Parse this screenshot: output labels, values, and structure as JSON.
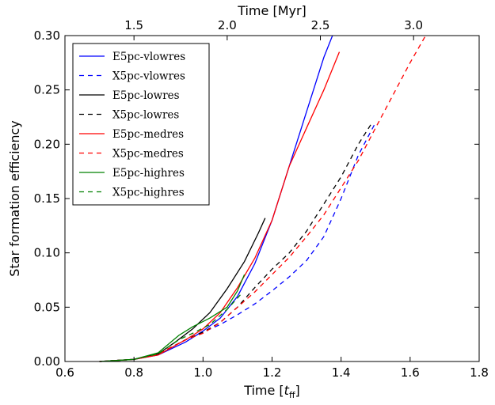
{
  "chart_data": {
    "type": "line",
    "xlabel": "Time [",
    "xlabel_sym": "t",
    "xlabel_sub": "ff",
    "xlabel_end": "]",
    "ylabel": "Star formation efficiency",
    "top_xlabel": "Time [Myr]",
    "xlim": [
      0.6,
      1.8
    ],
    "ylim": [
      0.0,
      0.3
    ],
    "xticks": [
      "0.6",
      "0.8",
      "1.0",
      "1.2",
      "1.4",
      "1.6",
      "1.8"
    ],
    "yticks": [
      "0.00",
      "0.05",
      "0.10",
      "0.15",
      "0.20",
      "0.25",
      "0.30"
    ],
    "top_xticks": [
      {
        "label": "1.5",
        "x": 0.8
      },
      {
        "label": "2.0",
        "x": 1.07
      },
      {
        "label": "2.5",
        "x": 1.34
      },
      {
        "label": "3.0",
        "x": 1.61
      }
    ],
    "grid": false,
    "legend_position": "top-left",
    "series": [
      {
        "name": "E5pc-vlowres",
        "color": "#0000ff",
        "dash": "solid",
        "x": [
          0.7,
          0.8,
          0.87,
          0.95,
          1.0,
          1.05,
          1.1,
          1.15,
          1.2,
          1.25,
          1.3,
          1.35,
          1.375
        ],
        "y": [
          0.0,
          0.002,
          0.006,
          0.018,
          0.028,
          0.04,
          0.06,
          0.09,
          0.13,
          0.18,
          0.23,
          0.28,
          0.3
        ]
      },
      {
        "name": "X5pc-vlowres",
        "color": "#0000ff",
        "dash": "dashed",
        "x": [
          0.7,
          0.8,
          0.87,
          0.95,
          1.0,
          1.05,
          1.1,
          1.15,
          1.2,
          1.25,
          1.3,
          1.35,
          1.4,
          1.45,
          1.5
        ],
        "y": [
          0.0,
          0.002,
          0.007,
          0.02,
          0.027,
          0.034,
          0.043,
          0.053,
          0.065,
          0.078,
          0.093,
          0.115,
          0.15,
          0.19,
          0.22
        ]
      },
      {
        "name": "E5pc-lowres",
        "color": "#000000",
        "dash": "solid",
        "x": [
          0.7,
          0.8,
          0.87,
          0.92,
          0.97,
          1.02,
          1.07,
          1.12,
          1.16,
          1.18
        ],
        "y": [
          0.0,
          0.002,
          0.007,
          0.018,
          0.03,
          0.045,
          0.067,
          0.092,
          0.118,
          0.132
        ]
      },
      {
        "name": "X5pc-lowres",
        "color": "#000000",
        "dash": "dashed",
        "x": [
          0.7,
          0.8,
          0.87,
          0.95,
          1.0,
          1.05,
          1.1,
          1.15,
          1.2,
          1.25,
          1.3,
          1.35,
          1.4,
          1.45,
          1.49
        ],
        "y": [
          0.0,
          0.002,
          0.007,
          0.02,
          0.027,
          0.036,
          0.05,
          0.068,
          0.085,
          0.1,
          0.12,
          0.145,
          0.17,
          0.2,
          0.22
        ]
      },
      {
        "name": "E5pc-medres",
        "color": "#ff0000",
        "dash": "solid",
        "x": [
          0.7,
          0.8,
          0.87,
          0.95,
          1.0,
          1.05,
          1.1,
          1.15,
          1.2,
          1.25,
          1.3,
          1.35,
          1.395
        ],
        "y": [
          0.0,
          0.002,
          0.006,
          0.02,
          0.03,
          0.045,
          0.068,
          0.095,
          0.13,
          0.18,
          0.215,
          0.25,
          0.285
        ]
      },
      {
        "name": "X5pc-medres",
        "color": "#ff0000",
        "dash": "dashed",
        "x": [
          0.7,
          0.8,
          0.87,
          0.95,
          1.0,
          1.05,
          1.1,
          1.15,
          1.2,
          1.25,
          1.3,
          1.35,
          1.4,
          1.45,
          1.5,
          1.55,
          1.6,
          1.645
        ],
        "y": [
          0.0,
          0.002,
          0.007,
          0.02,
          0.026,
          0.036,
          0.05,
          0.064,
          0.08,
          0.096,
          0.115,
          0.135,
          0.16,
          0.185,
          0.215,
          0.245,
          0.275,
          0.3
        ]
      },
      {
        "name": "E5pc-highres",
        "color": "#008000",
        "dash": "solid",
        "x": [
          0.7,
          0.8,
          0.87,
          0.93,
          0.97,
          1.02,
          1.07,
          1.1,
          1.12
        ],
        "y": [
          0.0,
          0.002,
          0.008,
          0.024,
          0.032,
          0.04,
          0.05,
          0.065,
          0.08
        ]
      },
      {
        "name": "X5pc-highres",
        "color": "#008000",
        "dash": "dashed",
        "x": [
          0.7,
          0.8,
          0.87,
          0.93,
          0.97,
          1.02,
          1.07,
          1.11
        ],
        "y": [
          0.0,
          0.002,
          0.007,
          0.02,
          0.026,
          0.034,
          0.048,
          0.062
        ]
      }
    ]
  }
}
